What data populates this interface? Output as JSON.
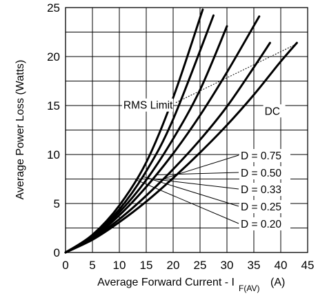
{
  "chart_data": {
    "type": "line",
    "title": "",
    "xlabel": "Average Forward Current - I",
    "xlabel_subscript": "F(AV)",
    "xlabel_unit": "(A)",
    "ylabel": "Average Power Loss (Watts)",
    "xlim": [
      0,
      45
    ],
    "ylim": [
      0,
      25
    ],
    "x_ticks": [
      "0",
      "5",
      "10",
      "15",
      "20",
      "25",
      "30",
      "35",
      "40",
      "45"
    ],
    "y_ticks": [
      "0",
      "5",
      "10",
      "15",
      "20",
      "25"
    ],
    "grid": true,
    "series": [
      {
        "name": "D = 0.20",
        "x": [
          0,
          5,
          10,
          15,
          20,
          25.5
        ],
        "y": [
          0,
          1.8,
          4.8,
          9.2,
          15.8,
          24.8
        ]
      },
      {
        "name": "D = 0.25",
        "x": [
          0,
          5,
          10,
          15,
          20,
          27.5
        ],
        "y": [
          0,
          1.7,
          4.4,
          8.3,
          13.6,
          24.2
        ]
      },
      {
        "name": "D = 0.33",
        "x": [
          0,
          5,
          10,
          15,
          20,
          25,
          30
        ],
        "y": [
          0,
          1.6,
          4.1,
          7.4,
          11.6,
          16.6,
          23.1
        ]
      },
      {
        "name": "D = 0.50",
        "x": [
          0,
          5,
          10,
          15,
          20,
          25,
          30,
          36
        ],
        "y": [
          0,
          1.5,
          3.8,
          6.7,
          10.1,
          14.0,
          18.4,
          24.1
        ]
      },
      {
        "name": "D = 0.75",
        "x": [
          0,
          5,
          10,
          15,
          20,
          25,
          30,
          35,
          38
        ],
        "y": [
          0,
          1.4,
          3.4,
          5.8,
          8.5,
          11.5,
          14.9,
          18.9,
          21.4
        ]
      },
      {
        "name": "DC",
        "x": [
          0,
          5,
          10,
          15,
          20,
          25,
          30,
          35,
          40,
          43
        ],
        "y": [
          0,
          1.3,
          3.1,
          5.2,
          7.6,
          10.2,
          13.0,
          16.1,
          19.5,
          21.4
        ]
      }
    ],
    "rms_limit": {
      "label": "RMS Limit",
      "x": [
        20.5,
        43
      ],
      "y": [
        15.3,
        21.3
      ]
    },
    "annotations": [
      {
        "text": "RMS Limit",
        "anchor_x": 20.5,
        "anchor_y": 15.3
      },
      {
        "text": "DC",
        "anchor_x": 37,
        "anchor_y": 14.7
      },
      {
        "text": "D = 0.75",
        "series": "D = 0.75",
        "at_x": 32.2
      },
      {
        "text": "D = 0.50",
        "series": "D = 0.50",
        "at_x": 30.8
      },
      {
        "text": "D = 0.33",
        "series": "D = 0.33",
        "at_x": 29.2
      },
      {
        "text": "D = 0.25",
        "series": "D = 0.25",
        "at_x": 28.3
      },
      {
        "text": "D = 0.20",
        "series": "D = 0.20",
        "at_x": 27.0
      }
    ]
  }
}
